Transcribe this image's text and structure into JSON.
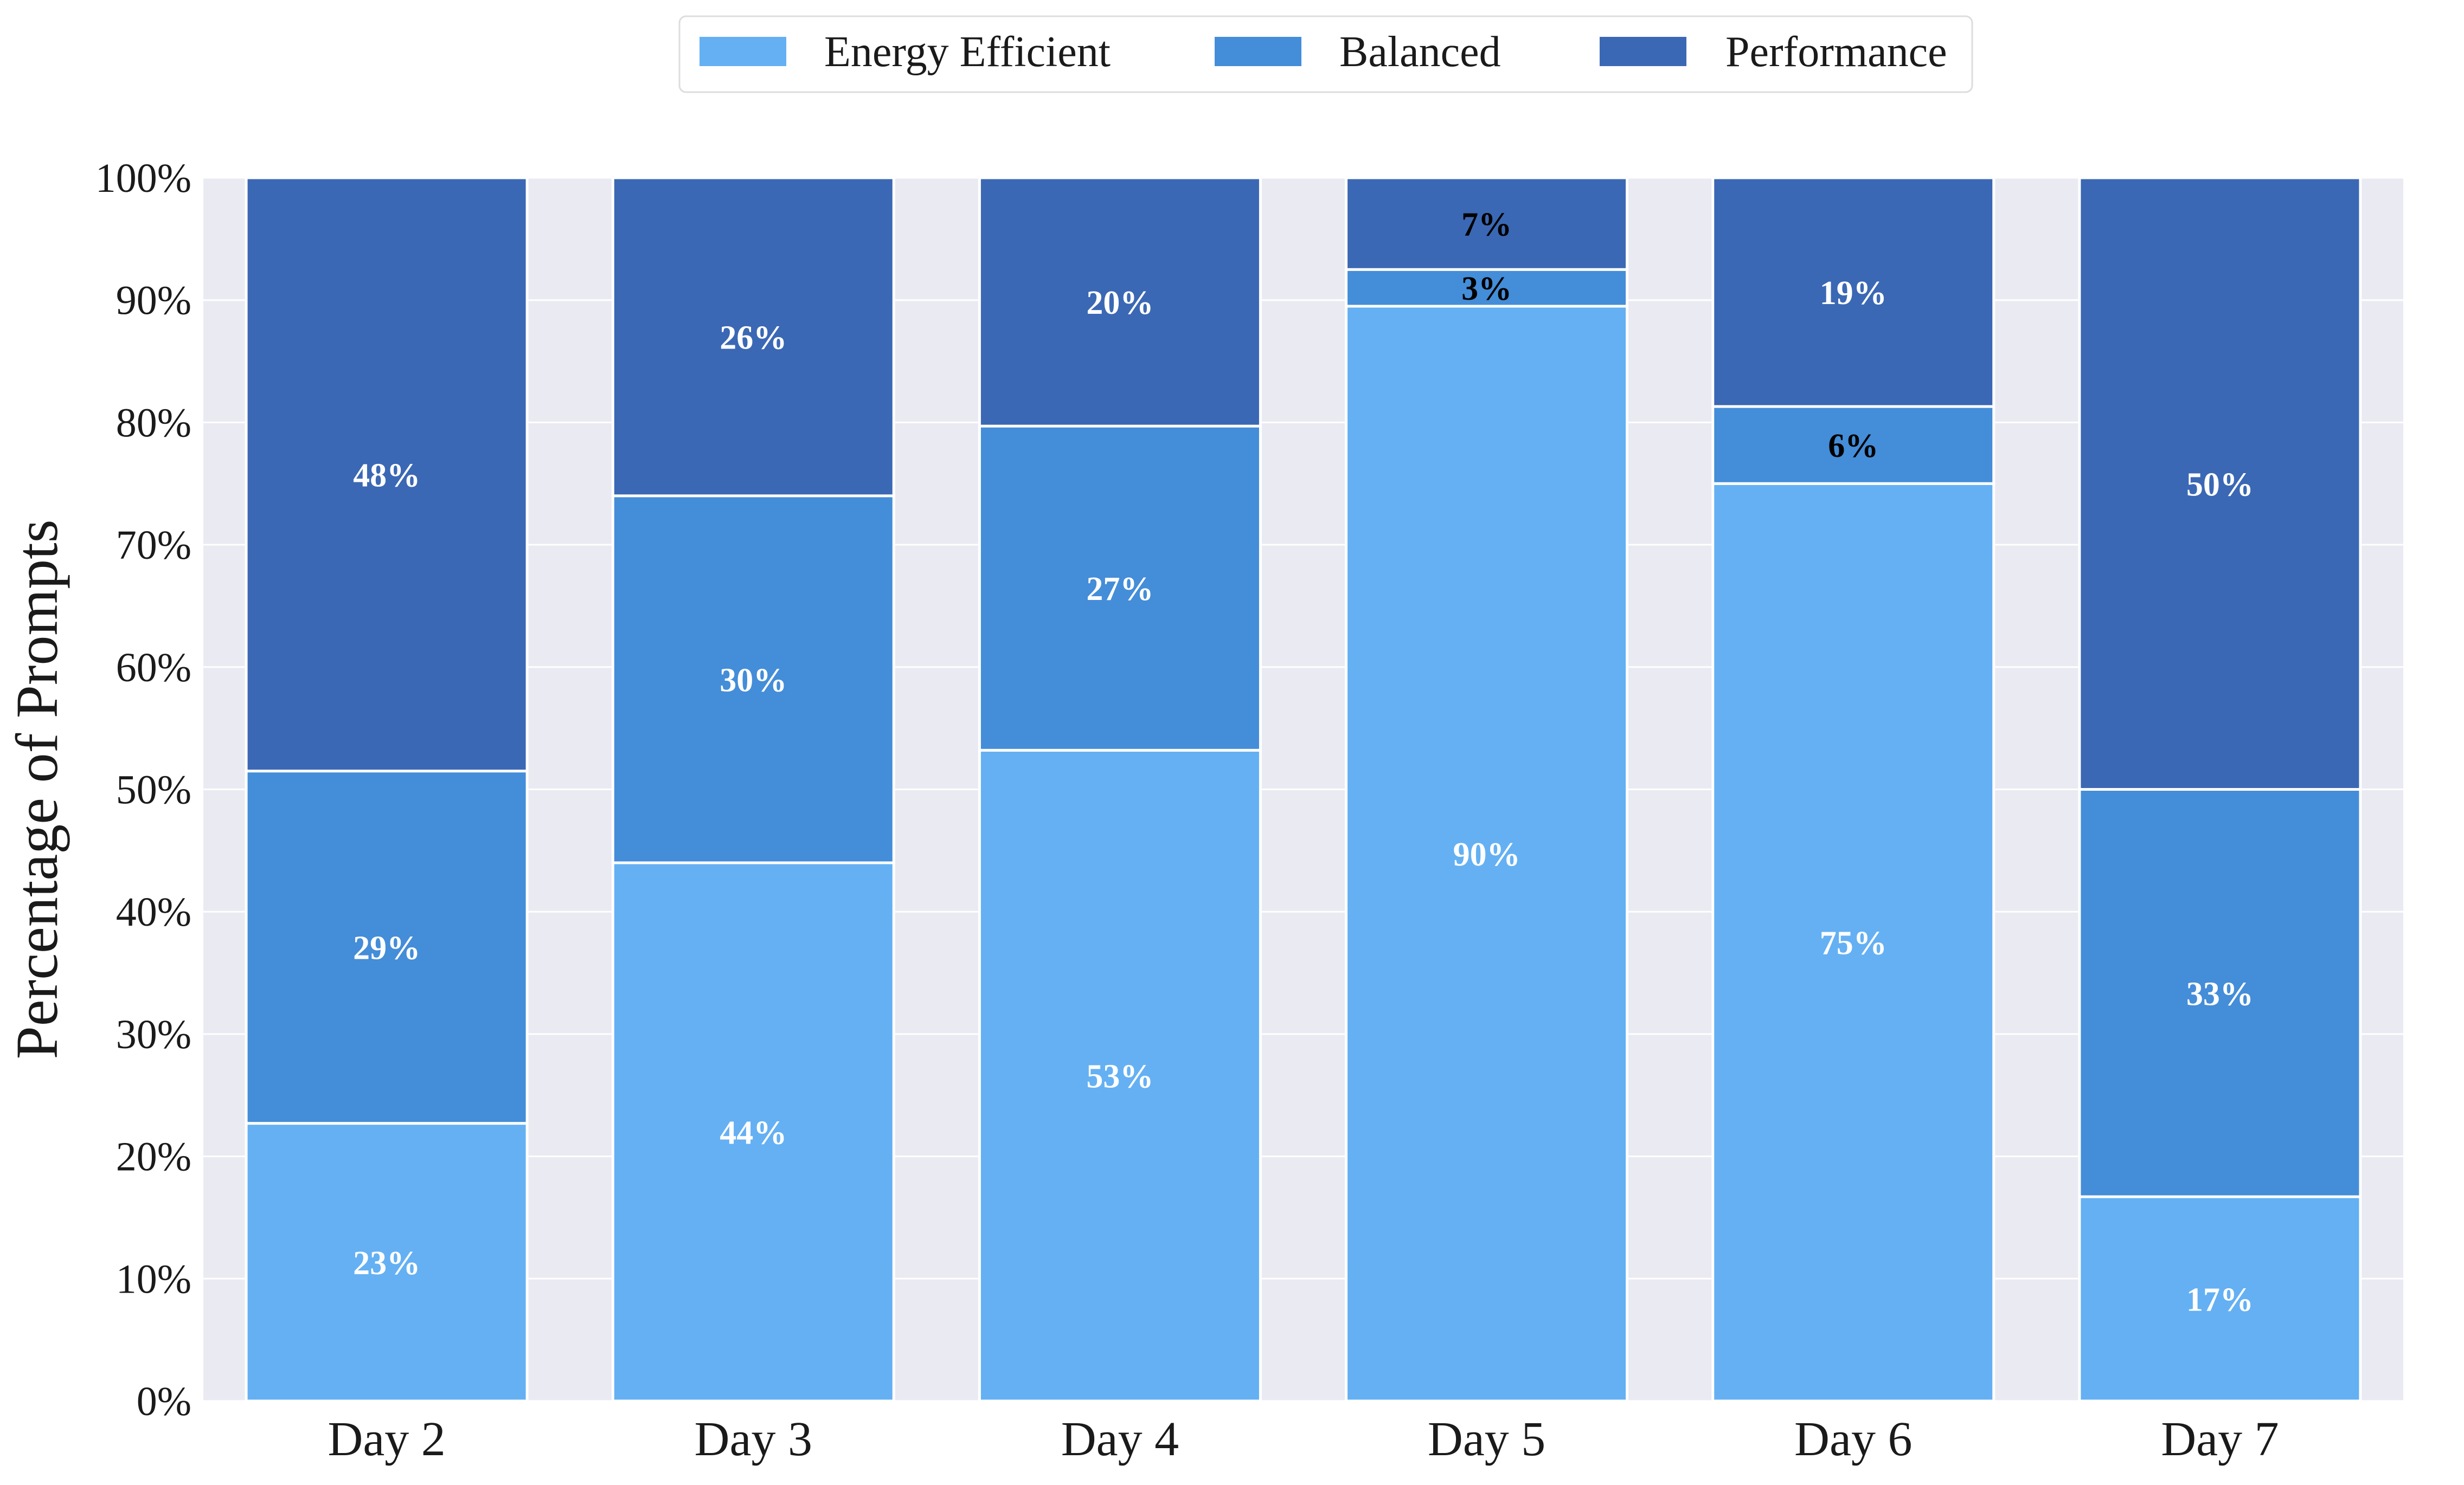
{
  "chart_data": {
    "type": "bar",
    "stacked": true,
    "categories": [
      "Day 2",
      "Day 3",
      "Day 4",
      "Day 5",
      "Day 6",
      "Day 7"
    ],
    "series": [
      {
        "name": "Energy Efficient",
        "color": "#64B0F3",
        "values": [
          22.7,
          44.0,
          53.2,
          89.5,
          75.0,
          16.7
        ],
        "labels": [
          "23%",
          "44%",
          "53%",
          "90%",
          "75%",
          "17%"
        ]
      },
      {
        "name": "Balanced",
        "color": "#448DD8",
        "values": [
          28.8,
          30.0,
          26.5,
          3.0,
          6.3,
          33.3
        ],
        "labels": [
          "29%",
          "30%",
          "27%",
          "3%",
          "6%",
          "33%"
        ]
      },
      {
        "name": "Performance",
        "color": "#3B68B4",
        "values": [
          48.5,
          26.0,
          20.3,
          7.5,
          18.7,
          50.0
        ],
        "labels": [
          "48%",
          "26%",
          "20%",
          "7%",
          "19%",
          "50%"
        ]
      }
    ],
    "title": "",
    "xlabel": "",
    "ylabel": "Percentage of Prompts",
    "ylim": [
      0,
      100
    ],
    "yticks": [
      0,
      10,
      20,
      30,
      40,
      50,
      60,
      70,
      80,
      90,
      100
    ],
    "ytick_labels": [
      "0%",
      "10%",
      "20%",
      "30%",
      "40%",
      "50%",
      "60%",
      "70%",
      "80%",
      "90%",
      "100%"
    ],
    "grid": true,
    "legend_position": "top-center",
    "plot_background": "#EAEAF2",
    "small_segment_label_color": "#000000",
    "segment_label_color": "#FFFFFF"
  }
}
